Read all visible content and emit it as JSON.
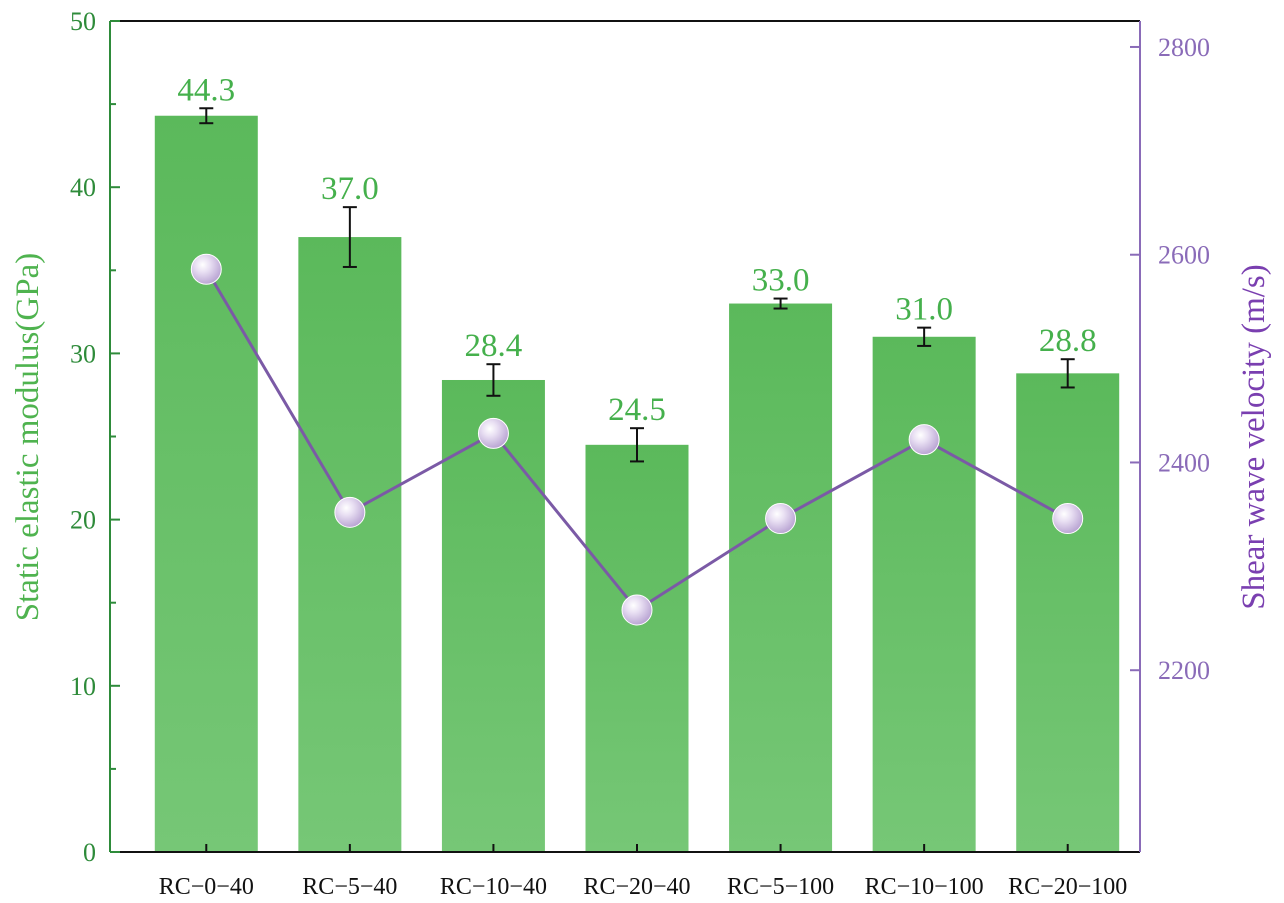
{
  "chart_data": {
    "type": "bar",
    "categories": [
      "RC−0−40",
      "RC−5−40",
      "RC−10−40",
      "RC−20−40",
      "RC−5−100",
      "RC−10−100",
      "RC−20−100"
    ],
    "series": [
      {
        "axis": "left",
        "kind": "bar",
        "values": [
          44.3,
          37.0,
          28.4,
          24.5,
          33.0,
          31.0,
          28.8
        ],
        "value_labels": [
          "44.3",
          "37.0",
          "28.4",
          "24.5",
          "33.0",
          "31.0",
          "28.8"
        ],
        "error": [
          0.45,
          1.8,
          0.95,
          1.0,
          0.3,
          0.55,
          0.85
        ],
        "color": "#5cb85c"
      },
      {
        "axis": "right",
        "kind": "line",
        "values": [
          2586,
          2352,
          2428,
          2258,
          2346,
          2422,
          2346
        ],
        "color": "#7b5aa6"
      }
    ],
    "ylabel": "Static elastic modulus(GPa)",
    "y2label": "Shear wave velocity (m/s)",
    "ylim": [
      0,
      50
    ],
    "y2lim": [
      2025,
      2825
    ],
    "yticks": [
      "0",
      "10",
      "20",
      "30",
      "40",
      "50"
    ],
    "y2ticks": [
      "2200",
      "2400",
      "2600",
      "2800"
    ],
    "grid": false,
    "colors": {
      "bar": "#5cb85c",
      "line": "#7b5aa6",
      "left_axis": "#2e8b3a",
      "right_axis": "#8a6bb8",
      "error_bar": "#111111",
      "marker": "#e6dcf0"
    }
  }
}
